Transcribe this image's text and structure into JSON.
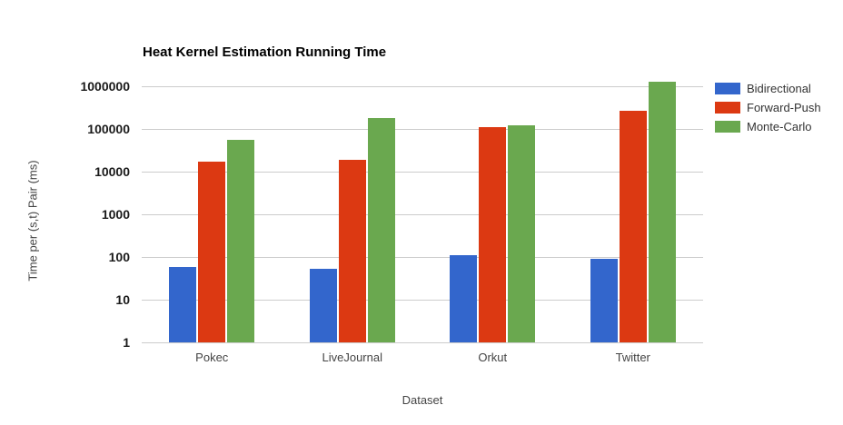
{
  "page": {
    "background": "#ffffff"
  },
  "chart_data": {
    "type": "bar",
    "title": "Heat Kernel Estimation Running Time",
    "xlabel": "Dataset",
    "ylabel": "Time per (s,t) Pair (ms)",
    "y_scale": "log",
    "ylim": [
      1,
      1000000
    ],
    "y_ticks": [
      1,
      10,
      100,
      1000,
      10000,
      100000,
      1000000
    ],
    "categories": [
      "Pokec",
      "LiveJournal",
      "Orkut",
      "Twitter"
    ],
    "series": [
      {
        "name": "Bidirectional",
        "color": "#3366cc",
        "values": [
          58,
          52,
          112,
          90
        ]
      },
      {
        "name": "Forward-Push",
        "color": "#dc3912",
        "values": [
          17000,
          18500,
          110000,
          265000
        ]
      },
      {
        "name": "Monte-Carlo",
        "color": "#6aa84f",
        "values": [
          56000,
          180000,
          120000,
          1250000
        ]
      }
    ],
    "legend_position": "right",
    "grid": true,
    "gridline_color": "#cccccc"
  }
}
